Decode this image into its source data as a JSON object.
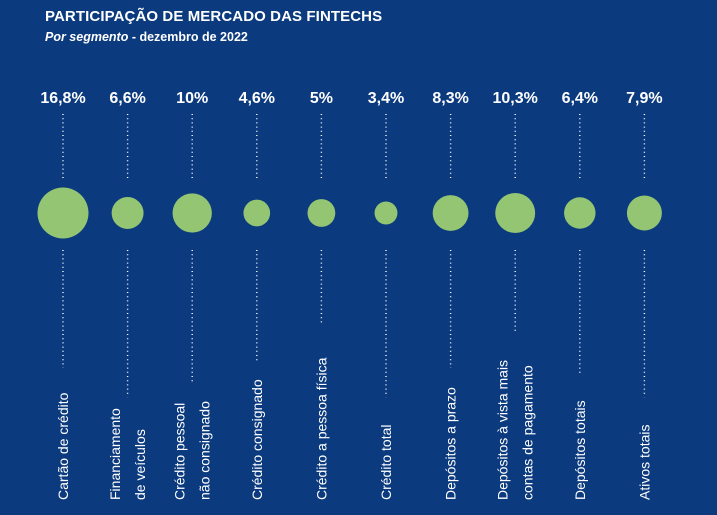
{
  "title": "PARTICIPAÇÃO DE MERCADO DAS FINTECHS",
  "subtitle_italic": "Por segmento",
  "subtitle_rest": " - dezembro de 2022",
  "colors": {
    "background": "#0b3a7e",
    "bubble": "#93c572",
    "text": "#ffffff",
    "dots": "#ffffff"
  },
  "chart_data": {
    "type": "bubble",
    "title": "PARTICIPAÇÃO DE MERCADO DAS FINTECHS",
    "subtitle": "Por segmento - dezembro de 2022",
    "categories": [
      [
        "Cartão de crédito"
      ],
      [
        "Financiamento",
        "de veículos"
      ],
      [
        "Crédito pessoal",
        "não consignado"
      ],
      [
        "Crédito consignado"
      ],
      [
        "Crédito a pessoa física"
      ],
      [
        "Crédito total"
      ],
      [
        "Depósitos a prazo"
      ],
      [
        "Depósitos à vista mais",
        "contas de pagamento"
      ],
      [
        "Depósitos totais"
      ],
      [
        "Ativos totais"
      ]
    ],
    "values": [
      16.8,
      6.6,
      10,
      4.6,
      5,
      3.4,
      8.3,
      10.3,
      6.4,
      7.9
    ],
    "value_labels": [
      "16,8%",
      "6,6%",
      "10%",
      "4,6%",
      "5%",
      "3,4%",
      "8,3%",
      "10,3%",
      "6,4%",
      "7,9%"
    ],
    "unit": "%"
  }
}
